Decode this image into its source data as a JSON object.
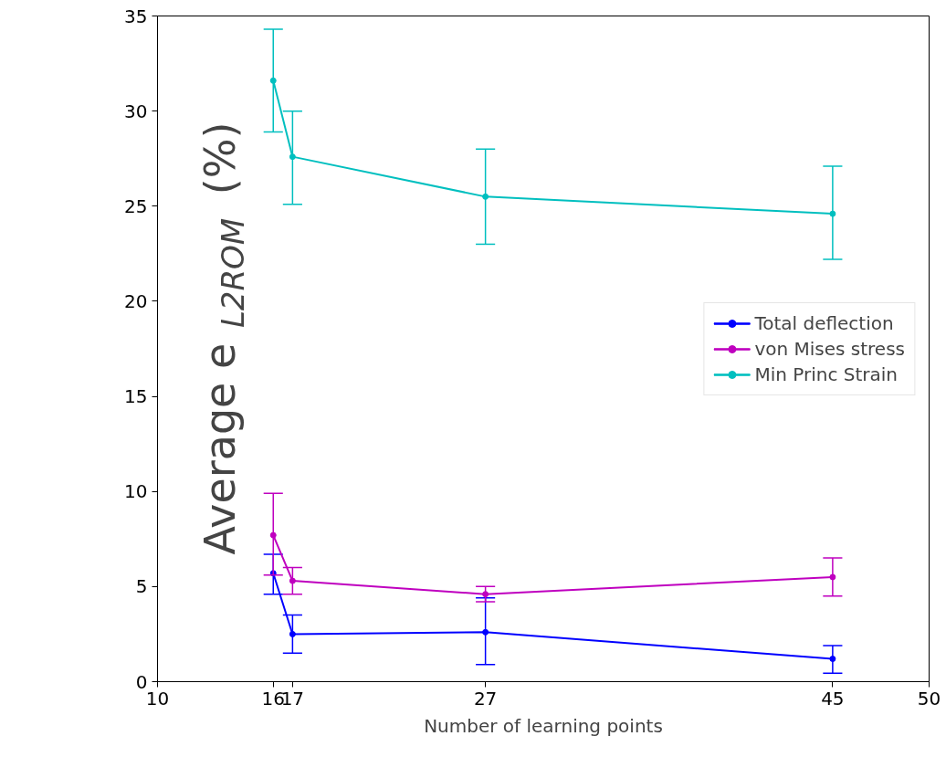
{
  "chart_data": {
    "type": "line",
    "xlabel": "Number of learning points",
    "ylabel": "Average e$_{L2ROM}$ (%)",
    "x": [
      16,
      17,
      27,
      45
    ],
    "xlim": [
      10,
      50
    ],
    "xticks": [
      10,
      16,
      17,
      27,
      45,
      50
    ],
    "ylim": [
      0,
      35
    ],
    "yticks": [
      0,
      5,
      10,
      15,
      20,
      25,
      30,
      35
    ],
    "grid": false,
    "legend": "right",
    "marker": "circle",
    "line_style": "solid",
    "series": [
      {
        "name": "Total deflection",
        "color": "#0000ff",
        "values": [
          5.7,
          2.5,
          2.6,
          1.2
        ],
        "errors": [
          [
            4.6,
            6.7
          ],
          [
            1.5,
            3.5
          ],
          [
            0.9,
            4.4
          ],
          [
            0.45,
            1.9
          ]
        ]
      },
      {
        "name": "von Mises stress",
        "color": "#bf00bf",
        "values": [
          7.7,
          5.3,
          4.6,
          5.5
        ],
        "errors": [
          [
            5.6,
            9.9
          ],
          [
            4.6,
            6.0
          ],
          [
            4.2,
            5.0
          ],
          [
            4.5,
            6.5
          ]
        ]
      },
      {
        "name": "Min Princ Strain",
        "color": "#00bfbf",
        "values": [
          31.6,
          27.6,
          25.5,
          24.6
        ],
        "errors": [
          [
            28.9,
            34.3
          ],
          [
            25.1,
            30.0
          ],
          [
            23.0,
            28.0
          ],
          [
            22.2,
            27.1
          ]
        ]
      }
    ]
  }
}
